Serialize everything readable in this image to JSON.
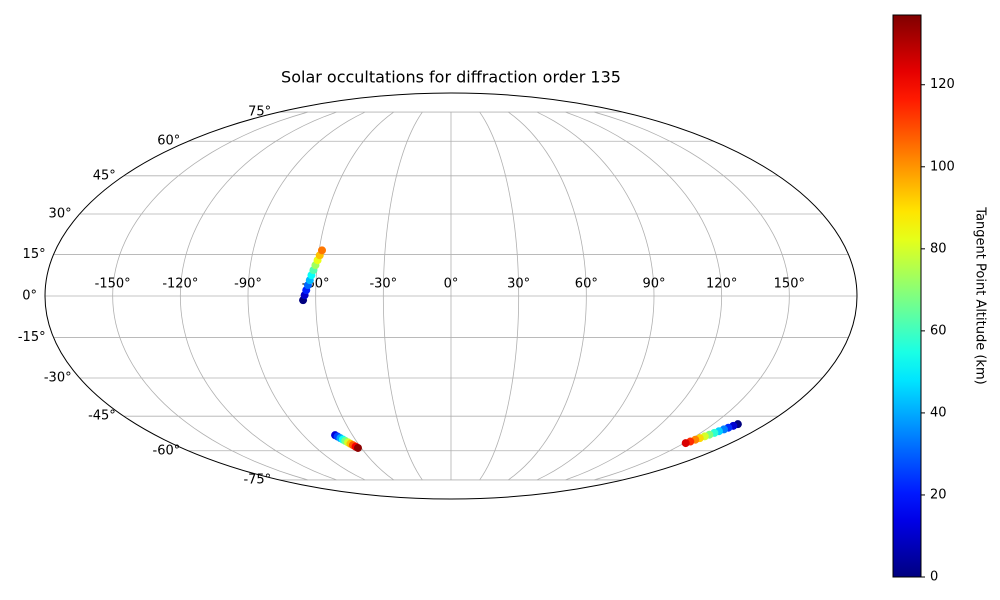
{
  "chart_data": {
    "type": "scatter",
    "projection": "mollweide",
    "title": "Solar occultations for diffraction order 135",
    "xlim": [
      -180,
      180
    ],
    "ylim": [
      -90,
      90
    ],
    "xticks": [
      {
        "value": -150,
        "label": "-150°"
      },
      {
        "value": -120,
        "label": "-120°"
      },
      {
        "value": -90,
        "label": "-90°"
      },
      {
        "value": -60,
        "label": "-60°"
      },
      {
        "value": -30,
        "label": "-30°"
      },
      {
        "value": 0,
        "label": "0°"
      },
      {
        "value": 30,
        "label": "30°"
      },
      {
        "value": 60,
        "label": "60°"
      },
      {
        "value": 90,
        "label": "90°"
      },
      {
        "value": 120,
        "label": "120°"
      },
      {
        "value": 150,
        "label": "150°"
      }
    ],
    "yticks": [
      {
        "value": -75,
        "label": "-75°"
      },
      {
        "value": -60,
        "label": "-60°"
      },
      {
        "value": -45,
        "label": "-45°"
      },
      {
        "value": -30,
        "label": "-30°"
      },
      {
        "value": -15,
        "label": "-15°"
      },
      {
        "value": 0,
        "label": "0°"
      },
      {
        "value": 15,
        "label": "15°"
      },
      {
        "value": 30,
        "label": "30°"
      },
      {
        "value": 45,
        "label": "45°"
      },
      {
        "value": 60,
        "label": "60°"
      },
      {
        "value": 75,
        "label": "75°"
      }
    ],
    "grid": true,
    "colormap": "jet",
    "clim": [
      0,
      137
    ],
    "colorbar_label": "Tangent Point Altitude (km)",
    "colorbar_ticks": [
      0,
      20,
      40,
      60,
      80,
      100,
      120
    ],
    "series": [
      {
        "x": [
          -65.6,
          -64.9,
          -64.2,
          -63.5,
          -62.8,
          -62.2,
          -61.5,
          -60.8,
          -60.1,
          -59.4,
          -58.7
        ],
        "y": [
          -1.5,
          0.3,
          2.1,
          3.9,
          5.7,
          7.5,
          9.3,
          11.1,
          12.9,
          14.7,
          16.5
        ],
        "c": [
          0,
          10,
          21,
          31,
          42,
          52,
          62,
          73,
          83,
          94,
          104
        ]
      },
      {
        "x": [
          -70.6,
          -69.7,
          -68.7,
          -67.8,
          -66.9,
          -65.9,
          -65.0,
          -64.1,
          -63.1,
          -62.2
        ],
        "y": [
          -53.0,
          -53.6,
          -54.3,
          -54.9,
          -55.5,
          -56.2,
          -56.8,
          -57.4,
          -58.1,
          -58.7
        ],
        "c": [
          12,
          26,
          39,
          53,
          67,
          80,
          94,
          108,
          121,
          135
        ]
      },
      {
        "x": [
          164,
          162.8,
          161.6,
          160.5,
          159.3,
          158.1,
          156.9,
          155.7,
          154.5,
          153.4,
          152.2,
          151
        ],
        "y": [
          -48.3,
          -49.0,
          -49.8,
          -50.5,
          -51.3,
          -52.0,
          -52.8,
          -53.5,
          -54.3,
          -55.0,
          -55.8,
          -56.5
        ],
        "c": [
          0,
          11,
          23,
          34,
          45,
          57,
          68,
          80,
          91,
          102,
          114,
          125
        ]
      }
    ]
  }
}
